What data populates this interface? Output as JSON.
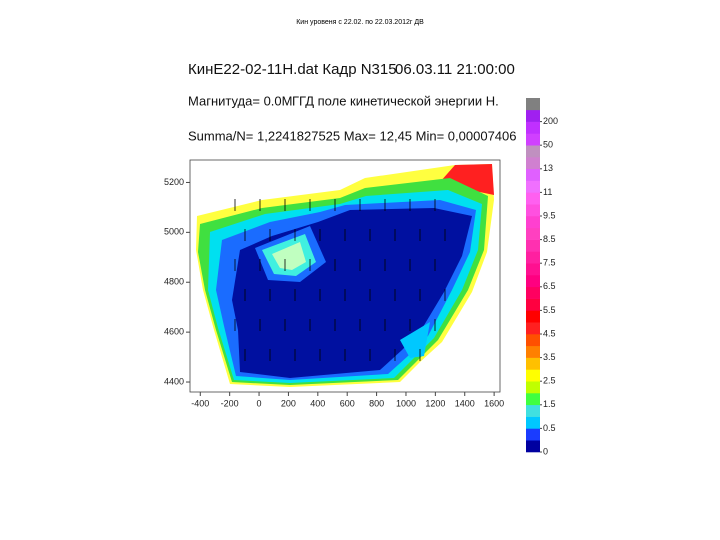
{
  "chart_data": {
    "type": "contour",
    "title": "Кин уровеня с 22.02. по 22.03.2012г ДВ",
    "header": {
      "file": "КинЕ22-02-11Н.dat Кадр N315",
      "datetime": "06.03.11 21:00:00",
      "magnitude": "Магнитуда= 0.0М",
      "field": "ГГД поле кинетической энергии Н.",
      "stats": "Summa/N= 1,2241827525 Max= 12,45 Min= 0,00007406"
    },
    "xlim": [
      -470,
      1640
    ],
    "ylim": [
      4360,
      5290
    ],
    "xticks": [
      -400,
      -200,
      0,
      200,
      400,
      600,
      800,
      1000,
      1200,
      1400,
      1600
    ],
    "yticks": [
      4400,
      4600,
      4800,
      5000,
      5200
    ],
    "colorbar": {
      "labels": [
        0,
        0.5,
        1.5,
        2.5,
        3.5,
        4.5,
        5.5,
        6.5,
        7.5,
        8.5,
        9.5,
        11,
        13,
        50,
        200
      ],
      "colors": [
        "#0000a0",
        "#1a3cff",
        "#00c8ff",
        "#40e0e0",
        "#40ff40",
        "#c0ff00",
        "#ffff00",
        "#ffc000",
        "#ff8000",
        "#ff5000",
        "#ff2020",
        "#ff0000",
        "#ff0040",
        "#ff0060",
        "#ff0080",
        "#ff1090",
        "#ff20a0",
        "#ff30b0",
        "#ff40c0",
        "#ff40d0",
        "#ff50e0",
        "#ff60f0",
        "#f070ff",
        "#e060ff",
        "#d080d0",
        "#c090c0",
        "#d040ff",
        "#c030ff",
        "#a020f0",
        "#808080"
      ]
    }
  }
}
